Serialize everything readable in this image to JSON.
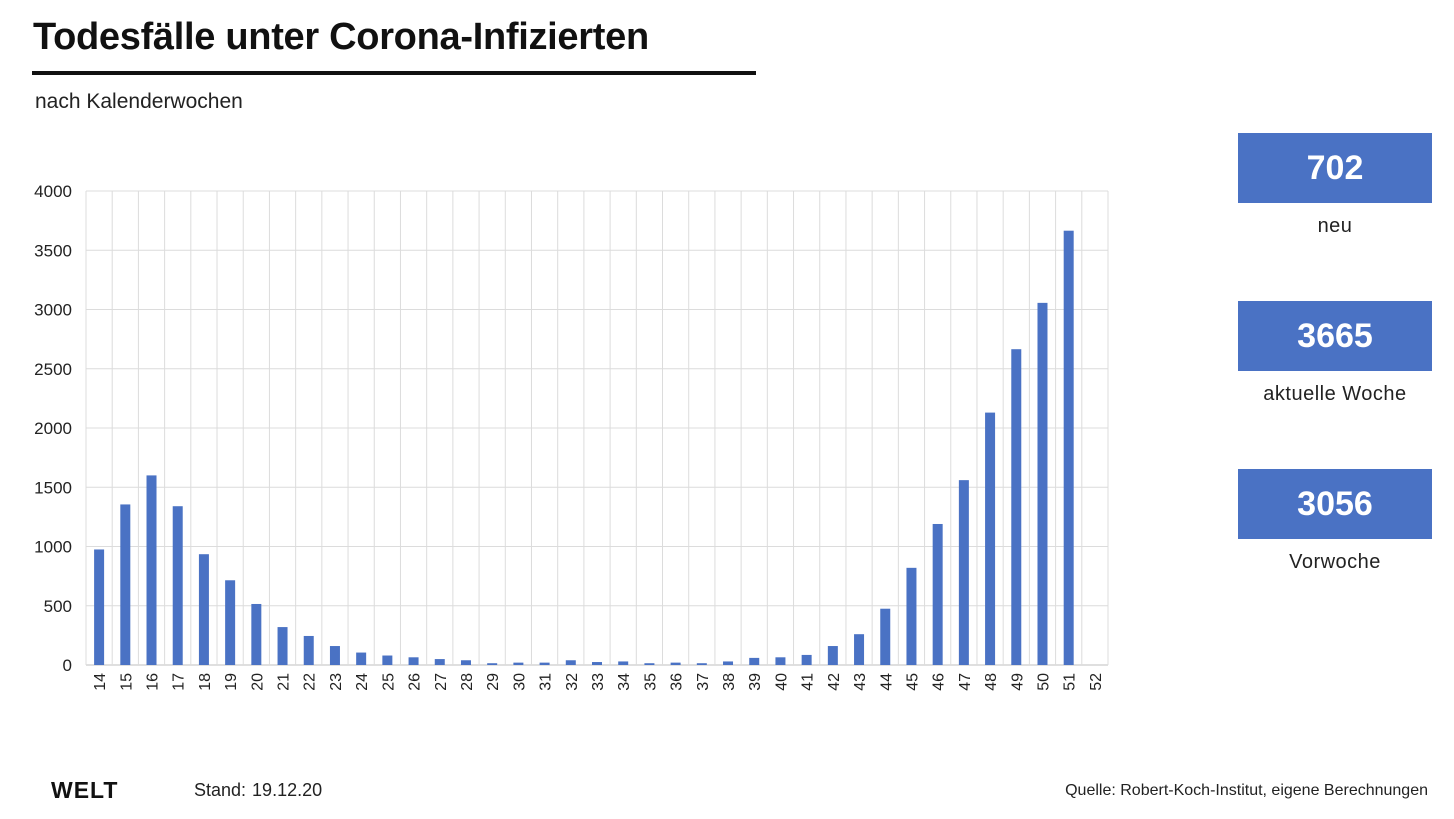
{
  "header": {
    "title": "Todesfälle unter Corona-Infizierten",
    "subtitle": "nach Kalenderwochen"
  },
  "colors": {
    "bar": "#4a72c4",
    "grid": "#dcdcdc",
    "axis": "#bfbfbf",
    "text": "#222222"
  },
  "kpis": [
    {
      "value": "702",
      "label": "neu"
    },
    {
      "value": "3665",
      "label": "aktuelle Woche"
    },
    {
      "value": "3056",
      "label": "Vorwoche"
    }
  ],
  "footer": {
    "logo": "WELT",
    "stand_label": "Stand:",
    "stand_date": "19.12.20",
    "source": "Quelle: Robert-Koch-Institut, eigene Berechnungen"
  },
  "chart_data": {
    "type": "bar",
    "title": "Todesfälle unter Corona-Infizierten",
    "xlabel": "",
    "ylabel": "",
    "ylim": [
      0,
      4000
    ],
    "yticks": [
      0,
      500,
      1000,
      1500,
      2000,
      2500,
      3000,
      3500,
      4000
    ],
    "grid": true,
    "categories": [
      "14",
      "15",
      "16",
      "17",
      "18",
      "19",
      "20",
      "21",
      "22",
      "23",
      "24",
      "25",
      "26",
      "27",
      "28",
      "29",
      "30",
      "31",
      "32",
      "33",
      "34",
      "35",
      "36",
      "37",
      "38",
      "39",
      "40",
      "41",
      "42",
      "43",
      "44",
      "45",
      "46",
      "47",
      "48",
      "49",
      "50",
      "51",
      "52"
    ],
    "values": [
      975,
      1355,
      1600,
      1340,
      935,
      715,
      515,
      320,
      245,
      160,
      105,
      80,
      65,
      50,
      40,
      15,
      20,
      20,
      40,
      25,
      30,
      15,
      20,
      15,
      30,
      60,
      65,
      85,
      160,
      260,
      475,
      820,
      1190,
      1560,
      2130,
      2665,
      3056,
      3665,
      null
    ]
  }
}
